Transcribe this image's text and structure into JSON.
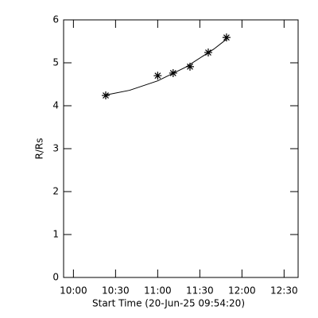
{
  "chart_data": {
    "type": "scatter",
    "xlabel": "Start Time (20-Jun-25 09:54:20)",
    "ylabel": "R/Rs",
    "x": [
      623,
      660,
      671,
      683,
      696,
      709
    ],
    "series": [
      {
        "marker": "asterisk",
        "color": "#000000",
        "x": [
          623,
          660,
          671,
          683,
          696,
          709
        ],
        "values": [
          4.24,
          4.7,
          4.76,
          4.91,
          5.24,
          5.59
        ]
      },
      {
        "marker": "line",
        "color": "#000000",
        "x": [
          623,
          640,
          660,
          680,
          700,
          709
        ],
        "values": [
          4.25,
          4.36,
          4.58,
          4.9,
          5.32,
          5.55
        ]
      }
    ],
    "xlim": [
      593,
      760
    ],
    "ylim": [
      0,
      6
    ],
    "xticks": [
      {
        "value": 600,
        "label": "10:00"
      },
      {
        "value": 630,
        "label": "10:30"
      },
      {
        "value": 660,
        "label": "11:00"
      },
      {
        "value": 690,
        "label": "11:30"
      },
      {
        "value": 720,
        "label": "12:00"
      },
      {
        "value": 750,
        "label": "12:30"
      }
    ],
    "yticks": [
      0,
      1,
      2,
      3,
      4,
      5,
      6
    ]
  }
}
